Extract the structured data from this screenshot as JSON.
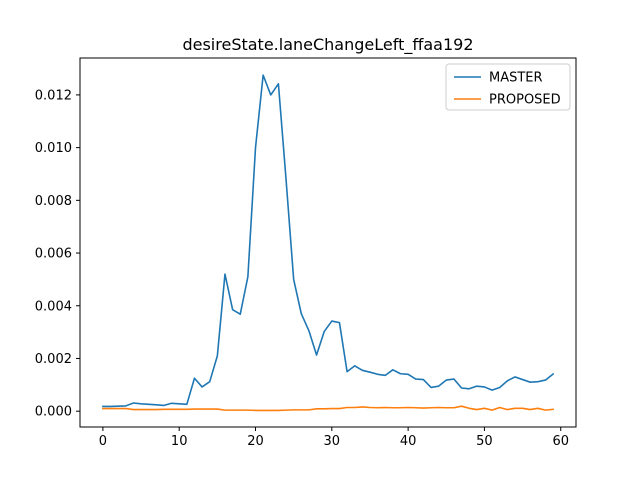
{
  "chart_data": {
    "type": "line",
    "title": "desireState.laneChangeLeft_ffaa192",
    "xlabel": "",
    "ylabel": "",
    "xlim": [
      -3,
      62
    ],
    "ylim": [
      -0.0006,
      0.0134
    ],
    "x_ticks": [
      0,
      10,
      20,
      30,
      40,
      50,
      60
    ],
    "y_ticks": [
      0.0,
      0.002,
      0.004,
      0.006,
      0.008,
      0.01,
      0.012
    ],
    "y_tick_labels": [
      "0.000",
      "0.002",
      "0.004",
      "0.006",
      "0.008",
      "0.010",
      "0.012"
    ],
    "grid": false,
    "legend": "top-right",
    "series": [
      {
        "name": "MASTER",
        "color": "#1f77b4",
        "x": [
          0,
          1,
          2,
          3,
          4,
          5,
          6,
          7,
          8,
          9,
          10,
          11,
          12,
          13,
          14,
          15,
          16,
          17,
          18,
          19,
          20,
          21,
          22,
          23,
          24,
          25,
          26,
          27,
          28,
          29,
          30,
          31,
          32,
          33,
          34,
          35,
          36,
          37,
          38,
          39,
          40,
          41,
          42,
          43,
          44,
          45,
          46,
          47,
          48,
          49,
          50,
          51,
          52,
          53,
          54,
          55,
          56,
          57,
          58,
          59
        ],
        "values": [
          0.00018,
          0.00018,
          0.00019,
          0.0002,
          0.00031,
          0.00028,
          0.00026,
          0.00024,
          0.00022,
          0.0003,
          0.00028,
          0.00026,
          0.00125,
          0.00092,
          0.00112,
          0.0021,
          0.0052,
          0.00385,
          0.00368,
          0.0051,
          0.01,
          0.01275,
          0.012,
          0.01242,
          0.0088,
          0.005,
          0.0037,
          0.00305,
          0.00213,
          0.00302,
          0.00342,
          0.00336,
          0.0015,
          0.00172,
          0.00155,
          0.00148,
          0.0014,
          0.00136,
          0.00157,
          0.00142,
          0.0014,
          0.00122,
          0.0012,
          0.0009,
          0.00095,
          0.00118,
          0.00122,
          0.00088,
          0.00085,
          0.00095,
          0.00092,
          0.0008,
          0.0009,
          0.00115,
          0.0013,
          0.0012,
          0.0011,
          0.00112,
          0.00118,
          0.00141
        ]
      },
      {
        "name": "PROPOSED",
        "color": "#ff7f0e",
        "x": [
          0,
          1,
          2,
          3,
          4,
          5,
          6,
          7,
          8,
          9,
          10,
          11,
          12,
          13,
          14,
          15,
          16,
          17,
          18,
          19,
          20,
          21,
          22,
          23,
          24,
          25,
          26,
          27,
          28,
          29,
          30,
          31,
          32,
          33,
          34,
          35,
          36,
          37,
          38,
          39,
          40,
          41,
          42,
          43,
          44,
          45,
          46,
          47,
          48,
          49,
          50,
          51,
          52,
          53,
          54,
          55,
          56,
          57,
          58,
          59
        ],
        "values": [
          0.0001,
          0.0001,
          0.0001,
          0.0001,
          6e-05,
          6e-05,
          6e-05,
          6e-05,
          7e-05,
          7e-05,
          7e-05,
          7e-05,
          8e-05,
          8e-05,
          8e-05,
          8e-05,
          4e-05,
          4e-05,
          4e-05,
          4e-05,
          3e-05,
          3e-05,
          3e-05,
          3e-05,
          4e-05,
          5e-05,
          5e-05,
          5e-05,
          9e-05,
          9e-05,
          0.0001,
          0.0001,
          0.00014,
          0.00014,
          0.00016,
          0.00014,
          0.00013,
          0.00014,
          0.00013,
          0.00013,
          0.00014,
          0.00013,
          0.00012,
          0.00013,
          0.00014,
          0.00013,
          0.00013,
          0.00019,
          0.00011,
          6e-05,
          0.00011,
          4e-05,
          0.00014,
          6e-05,
          0.00011,
          0.00011,
          6e-05,
          0.00011,
          4e-05,
          7e-05
        ]
      }
    ]
  }
}
